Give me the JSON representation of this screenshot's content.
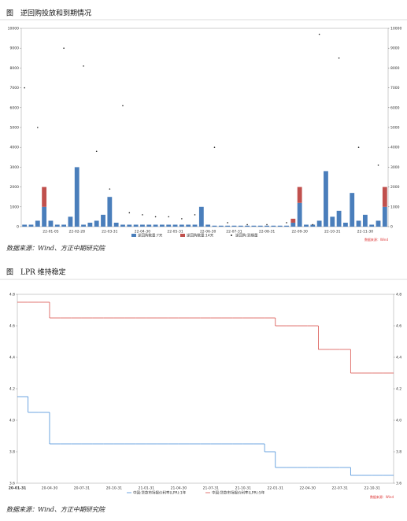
{
  "chart_data": [
    {
      "type": "bar",
      "title": "图　逆回购投放和到期情况",
      "source": "数据来源：Wind、方正中期研究院",
      "note": "数据来源：Wind",
      "categories": [
        null,
        null,
        null,
        null,
        "22-01-05",
        null,
        null,
        null,
        "22-02-28",
        null,
        null,
        null,
        null,
        "22-03-31",
        null,
        null,
        null,
        null,
        "22-04-30",
        null,
        null,
        null,
        null,
        "22-05-31",
        null,
        null,
        null,
        null,
        "22-06-30",
        null,
        null,
        null,
        "22-07-31",
        null,
        null,
        null,
        null,
        "22-08-31",
        null,
        null,
        null,
        null,
        "22-09-30",
        null,
        null,
        null,
        null,
        "22-10-31",
        null,
        null,
        null,
        null,
        "22-11-30",
        null,
        null,
        null
      ],
      "series": [
        {
          "name": "逆回购数量:7天",
          "color": "#4a7ebb",
          "values": [
            100,
            100,
            300,
            1000,
            300,
            100,
            100,
            500,
            3000,
            100,
            200,
            300,
            600,
            1500,
            200,
            100,
            100,
            100,
            100,
            100,
            100,
            100,
            100,
            100,
            100,
            100,
            100,
            1000,
            100,
            50,
            50,
            50,
            50,
            50,
            50,
            50,
            50,
            50,
            50,
            50,
            50,
            200,
            1200,
            100,
            100,
            300,
            2800,
            500,
            800,
            200,
            1700,
            300,
            600,
            100,
            300,
            1000
          ]
        },
        {
          "name": "逆回购数量:14天",
          "color": "#c0504d",
          "values": [
            null,
            null,
            null,
            1000,
            null,
            null,
            null,
            null,
            null,
            null,
            null,
            null,
            null,
            null,
            null,
            null,
            null,
            null,
            null,
            null,
            null,
            null,
            null,
            null,
            null,
            null,
            null,
            null,
            null,
            null,
            null,
            null,
            null,
            null,
            null,
            null,
            null,
            null,
            null,
            null,
            null,
            200,
            800,
            null,
            null,
            null,
            null,
            null,
            null,
            null,
            null,
            null,
            null,
            null,
            null,
            1000
          ]
        },
        {
          "name": "逆回购:到期量",
          "color": "#222222",
          "type": "scatter",
          "values": [
            7000,
            null,
            5000,
            null,
            null,
            null,
            9000,
            null,
            null,
            8100,
            null,
            3800,
            null,
            1900,
            null,
            6100,
            700,
            null,
            600,
            null,
            500,
            null,
            500,
            null,
            400,
            null,
            600,
            null,
            null,
            4000,
            null,
            200,
            null,
            null,
            100,
            null,
            null,
            100,
            null,
            null,
            200,
            null,
            null,
            null,
            100,
            9700,
            null,
            null,
            8500,
            null,
            null,
            4000,
            null,
            null,
            3100,
            null
          ]
        }
      ],
      "ylim": [
        0,
        10000
      ],
      "yticks": [
        0,
        1000,
        2000,
        3000,
        4000,
        5000,
        6000,
        7000,
        8000,
        9000,
        10000
      ],
      "grid": false
    },
    {
      "type": "line",
      "step": true,
      "title": "图　LPR 维持稳定",
      "source": "数据来源：Wind、方正中期研究院",
      "note": "数据来源：Wind",
      "categories": [
        "20-01-31",
        null,
        null,
        "20-04-30",
        null,
        null,
        "20-07-31",
        null,
        null,
        "20-10-31",
        null,
        null,
        "21-01-31",
        null,
        null,
        "21-04-30",
        null,
        null,
        "21-07-31",
        null,
        null,
        "21-10-31",
        null,
        null,
        "22-01-31",
        null,
        null,
        "22-04-30",
        null,
        null,
        "22-07-31",
        null,
        null,
        "22-10-31",
        null,
        null
      ],
      "series": [
        {
          "name": "中国:贷款市场报价利率(LPR):1年",
          "color": "#4a90d9",
          "values": [
            4.15,
            4.05,
            4.05,
            3.85,
            3.85,
            3.85,
            3.85,
            3.85,
            3.85,
            3.85,
            3.85,
            3.85,
            3.85,
            3.85,
            3.85,
            3.85,
            3.85,
            3.85,
            3.85,
            3.85,
            3.85,
            3.85,
            3.85,
            3.8,
            3.7,
            3.7,
            3.7,
            3.7,
            3.7,
            3.7,
            3.7,
            3.65,
            3.65,
            3.65,
            3.65,
            3.65
          ]
        },
        {
          "name": "中国:贷款市场报价利率(LPR):5年",
          "color": "#d9534f",
          "values": [
            4.75,
            4.75,
            4.75,
            4.65,
            4.65,
            4.65,
            4.65,
            4.65,
            4.65,
            4.65,
            4.65,
            4.65,
            4.65,
            4.65,
            4.65,
            4.65,
            4.65,
            4.65,
            4.65,
            4.65,
            4.65,
            4.65,
            4.65,
            4.65,
            4.6,
            4.6,
            4.6,
            4.6,
            4.45,
            4.45,
            4.45,
            4.3,
            4.3,
            4.3,
            4.3,
            4.3
          ]
        }
      ],
      "ylim": [
        3.6,
        4.8
      ],
      "yticks": [
        3.6,
        3.8,
        {
          "value": 4.0,
          "label": "4.0"
        },
        4.2,
        4.4,
        4.6,
        4.8
      ],
      "grid": false
    }
  ]
}
